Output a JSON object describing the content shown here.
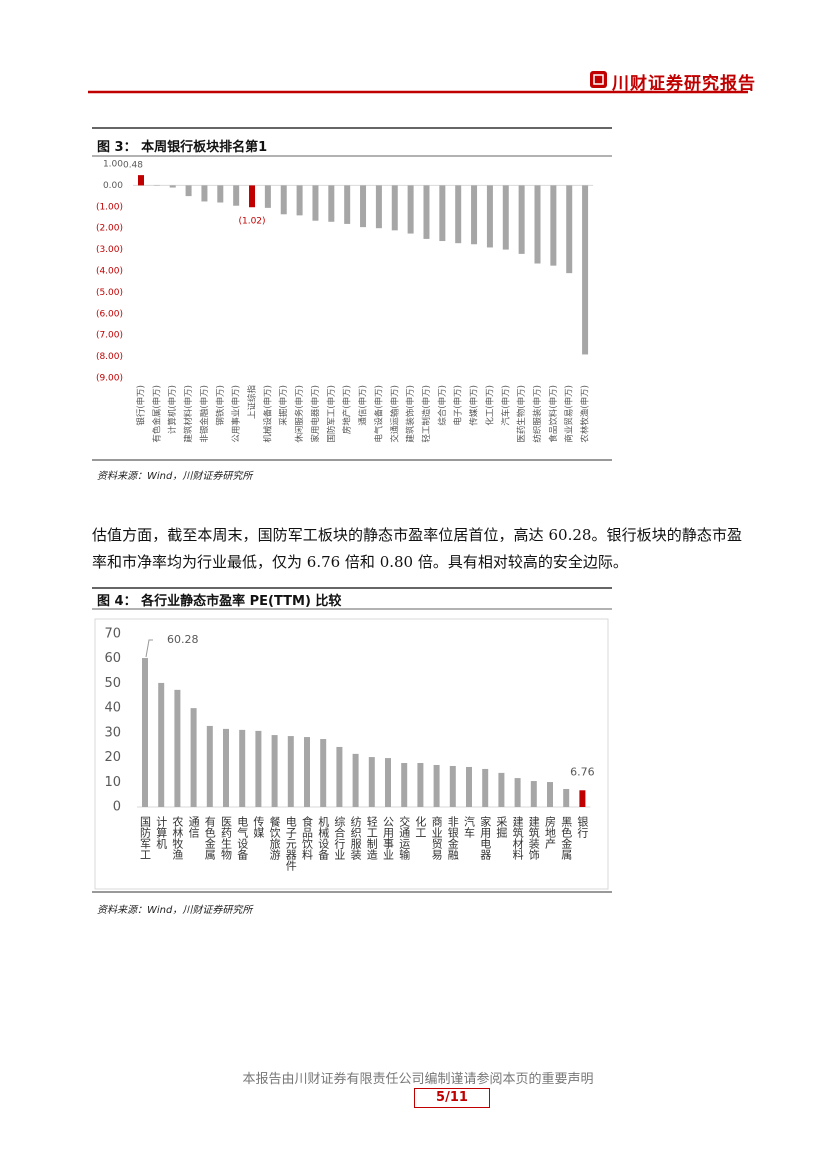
{
  "header": {
    "brand": "川财证券研究报告"
  },
  "chart_data": [
    {
      "type": "bar",
      "title": "图 3： 本周银行板块排名第1",
      "source": "资料来源：Wind，川财证券研究所",
      "categories": [
        "银行(申万)",
        "有色金属(申万)",
        "计算机(申万)",
        "建筑材料(申万)",
        "非银金融(申万)",
        "钢铁(申万)",
        "公用事业(申万)",
        "上证综指",
        "机械设备(申万)",
        "采掘(申万)",
        "休闲服务(申万)",
        "家用电器(申万)",
        "国防军工(申万)",
        "房地产(申万)",
        "通信(申万)",
        "电气设备(申万)",
        "交通运输(申万)",
        "建筑装饰(申万)",
        "轻工制造(申万)",
        "综合(申万)",
        "电子(申万)",
        "传媒(申万)",
        "化工(申万)",
        "汽车(申万)",
        "医药生物(申万)",
        "纺织服装(申万)",
        "食品饮料(申万)",
        "商业贸易(申万)",
        "农林牧渔(申万)"
      ],
      "values": [
        0.48,
        0.02,
        -0.1,
        -0.5,
        -0.75,
        -0.8,
        -0.95,
        -1.02,
        -1.05,
        -1.35,
        -1.4,
        -1.65,
        -1.7,
        -1.8,
        -1.95,
        -2.0,
        -2.1,
        -2.25,
        -2.5,
        -2.6,
        -2.7,
        -2.75,
        -2.9,
        -3.0,
        -3.2,
        -3.65,
        -3.75,
        -4.1,
        -7.9
      ],
      "value_labels": [
        "0.48",
        null,
        null,
        null,
        null,
        null,
        null,
        "(1.02)",
        null,
        null,
        null,
        null,
        null,
        null,
        null,
        null,
        null,
        null,
        null,
        null,
        null,
        null,
        null,
        null,
        null,
        null,
        null,
        null,
        null
      ],
      "colors": [
        "#c00000",
        "#a6a6a6",
        "#a6a6a6",
        "#a6a6a6",
        "#a6a6a6",
        "#a6a6a6",
        "#a6a6a6",
        "#c00000",
        "#a6a6a6",
        "#a6a6a6",
        "#a6a6a6",
        "#a6a6a6",
        "#a6a6a6",
        "#a6a6a6",
        "#a6a6a6",
        "#a6a6a6",
        "#a6a6a6",
        "#a6a6a6",
        "#a6a6a6",
        "#a6a6a6",
        "#a6a6a6",
        "#a6a6a6",
        "#a6a6a6",
        "#a6a6a6",
        "#a6a6a6",
        "#a6a6a6",
        "#a6a6a6",
        "#a6a6a6",
        "#a6a6a6"
      ],
      "tick_color": "#595959",
      "negative_tick_color": "#c00000",
      "ylim": [
        -9,
        1
      ],
      "yticks": [
        {
          "value": 1,
          "label": "1.00"
        },
        {
          "value": 0,
          "label": "0.00"
        },
        {
          "value": -1,
          "label": "(1.00)"
        },
        {
          "value": -2,
          "label": "(2.00)"
        },
        {
          "value": -3,
          "label": "(3.00)"
        },
        {
          "value": -4,
          "label": "(4.00)"
        },
        {
          "value": -5,
          "label": "(5.00)"
        },
        {
          "value": -6,
          "label": "(6.00)"
        },
        {
          "value": -7,
          "label": "(7.00)"
        },
        {
          "value": -8,
          "label": "(8.00)"
        },
        {
          "value": -9,
          "label": "(9.00)"
        }
      ]
    },
    {
      "type": "bar",
      "title": "图 4： 各行业静态市盈率 PE(TTM) 比较",
      "source": "资料来源：Wind，川财证券研究所",
      "categories": [
        "国防军工",
        "计算机",
        "农林牧渔",
        "通信",
        "有色金属",
        "医药生物",
        "电气设备",
        "传媒",
        "餐饮旅游",
        "电子元器件",
        "食品饮料",
        "机械设备",
        "综合行业",
        "纺织服装",
        "轻工制造",
        "公用事业",
        "交通运输",
        "化工",
        "商业贸易",
        "非银金融",
        "汽车",
        "家用电器",
        "采掘",
        "建筑材料",
        "建筑装饰",
        "房地产",
        "黑色金属",
        "银行"
      ],
      "values": [
        60.28,
        50.2,
        47.4,
        40,
        32.8,
        31.6,
        31.2,
        30.8,
        29.1,
        28.7,
        28.3,
        27.5,
        24.3,
        21.5,
        20.2,
        19.8,
        17.8,
        17.8,
        17,
        16.6,
        16.2,
        15.4,
        13.8,
        11.7,
        10.5,
        10.1,
        7.3,
        6.76
      ],
      "value_labels": [
        "60.28",
        null,
        null,
        null,
        null,
        null,
        null,
        null,
        null,
        null,
        null,
        null,
        null,
        null,
        null,
        null,
        null,
        null,
        null,
        null,
        null,
        null,
        null,
        null,
        null,
        null,
        null,
        "6.76"
      ],
      "colors": [
        "#a6a6a6",
        "#a6a6a6",
        "#a6a6a6",
        "#a6a6a6",
        "#a6a6a6",
        "#a6a6a6",
        "#a6a6a6",
        "#a6a6a6",
        "#a6a6a6",
        "#a6a6a6",
        "#a6a6a6",
        "#a6a6a6",
        "#a6a6a6",
        "#a6a6a6",
        "#a6a6a6",
        "#a6a6a6",
        "#a6a6a6",
        "#a6a6a6",
        "#a6a6a6",
        "#a6a6a6",
        "#a6a6a6",
        "#a6a6a6",
        "#a6a6a6",
        "#a6a6a6",
        "#a6a6a6",
        "#a6a6a6",
        "#a6a6a6",
        "#c00000"
      ],
      "tick_color": "#595959",
      "ylim": [
        0,
        70
      ],
      "yticks": [
        0,
        10,
        20,
        30,
        40,
        50,
        60,
        70
      ]
    }
  ],
  "paragraph": "估值方面，截至本周末，国防军工板块的静态市盈率位居首位，高达 60.28。银行板块的静态市盈率和市净率均为行业最低，仅为 6.76 倍和 0.80 倍。具有相对较高的安全边际。",
  "footer": {
    "statement": "本报告由川财证券有限责任公司编制谨请参阅本页的重要声明",
    "page": "5/11"
  }
}
